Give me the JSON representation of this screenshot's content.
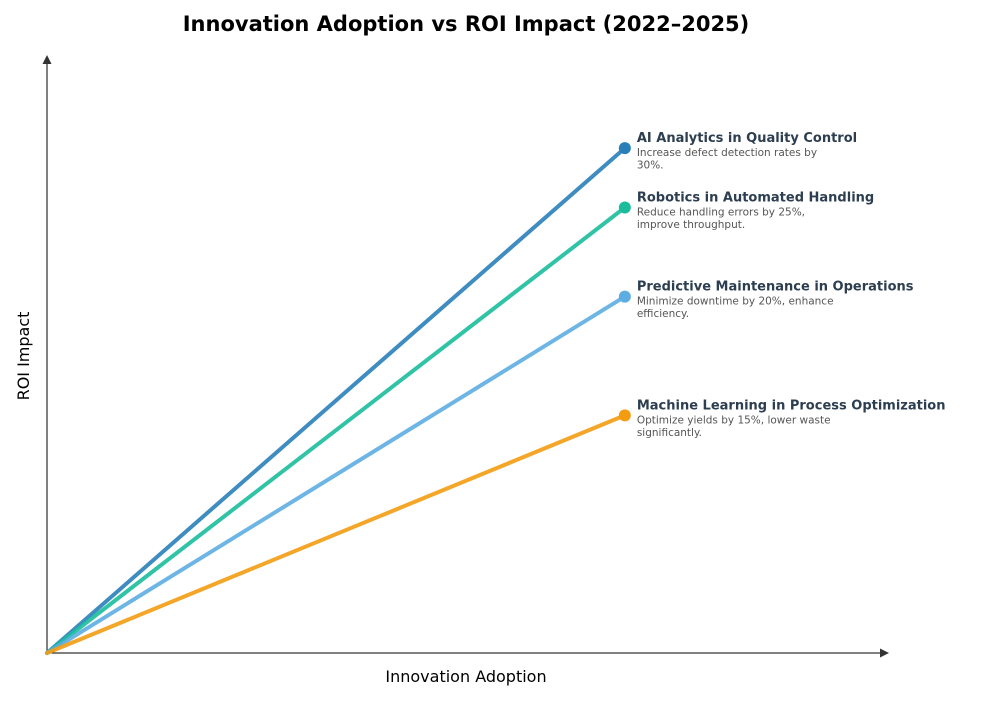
{
  "chart_data": {
    "type": "line",
    "title": "Innovation Adoption vs ROI Impact (2022–2025)",
    "xlabel": "Innovation Adoption",
    "ylabel": "ROI Impact",
    "xlim": [
      0,
      10.2
    ],
    "ylim": [
      0,
      10
    ],
    "grid": false,
    "series": [
      {
        "name": "AI Analytics in Quality Control",
        "description": [
          "Increase defect detection rates by",
          "30%."
        ],
        "x": [
          0,
          7
        ],
        "y": [
          0,
          8.5
        ],
        "color": "#2980b9"
      },
      {
        "name": "Robotics in Automated Handling",
        "description": [
          "Reduce handling errors by 25%,",
          "improve throughput."
        ],
        "x": [
          0,
          7
        ],
        "y": [
          0,
          7.5
        ],
        "color": "#1abc9c"
      },
      {
        "name": "Predictive Maintenance in Operations",
        "description": [
          "Minimize downtime by 20%, enhance",
          "efficiency."
        ],
        "x": [
          0,
          7
        ],
        "y": [
          0,
          6
        ],
        "color": "#5dade2"
      },
      {
        "name": "Machine Learning in Process Optimization",
        "description": [
          "Optimize yields by 15%, lower waste",
          "significantly."
        ],
        "x": [
          0,
          7
        ],
        "y": [
          0,
          4
        ],
        "color": "#f39c12"
      }
    ]
  }
}
